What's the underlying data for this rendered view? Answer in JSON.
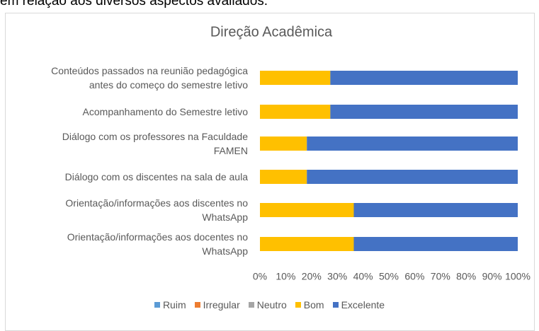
{
  "caption": "em relação aos diversos aspectos avaliados.",
  "chart_data": {
    "type": "stacked-bar-horizontal",
    "title": "Direção Acadêmica",
    "categories": [
      "Conteúdos passados na reunião pedagógica\nantes do começo do semestre letivo",
      "Acompanhamento do Semestre letivo",
      "Diálogo com os professores na Faculdade\nFAMEN",
      "Diálogo com os discentes na sala de aula",
      "Orientação/informações aos discentes no\nWhatsApp",
      "Orientação/informações aos docentes no\nWhatsApp"
    ],
    "series": [
      {
        "name": "Ruim",
        "color": "#5b9bd5",
        "values": [
          0,
          0,
          0,
          0,
          0,
          0
        ]
      },
      {
        "name": "Irregular",
        "color": "#ed7d31",
        "values": [
          0,
          0,
          0,
          0,
          0,
          0
        ]
      },
      {
        "name": "Neutro",
        "color": "#a5a5a5",
        "values": [
          0,
          0,
          0,
          0,
          0,
          0
        ]
      },
      {
        "name": "Bom",
        "color": "#ffc000",
        "values": [
          27.3,
          27.3,
          18.2,
          18.2,
          36.4,
          36.4
        ]
      },
      {
        "name": "Excelente",
        "color": "#4472c4",
        "values": [
          72.7,
          72.7,
          81.8,
          81.8,
          63.6,
          63.6
        ]
      }
    ],
    "xlim": [
      0,
      100
    ],
    "xticks": [
      {
        "value": 0,
        "label": "0%"
      },
      {
        "value": 10,
        "label": "10%"
      },
      {
        "value": 20,
        "label": "20%"
      },
      {
        "value": 30,
        "label": "30%"
      },
      {
        "value": 40,
        "label": "40%"
      },
      {
        "value": 50,
        "label": "50%"
      },
      {
        "value": 60,
        "label": "60%"
      },
      {
        "value": 70,
        "label": "70%"
      },
      {
        "value": 80,
        "label": "80%"
      },
      {
        "value": 90,
        "label": "90%"
      },
      {
        "value": 100,
        "label": "100%"
      }
    ],
    "legend": "bottom"
  }
}
